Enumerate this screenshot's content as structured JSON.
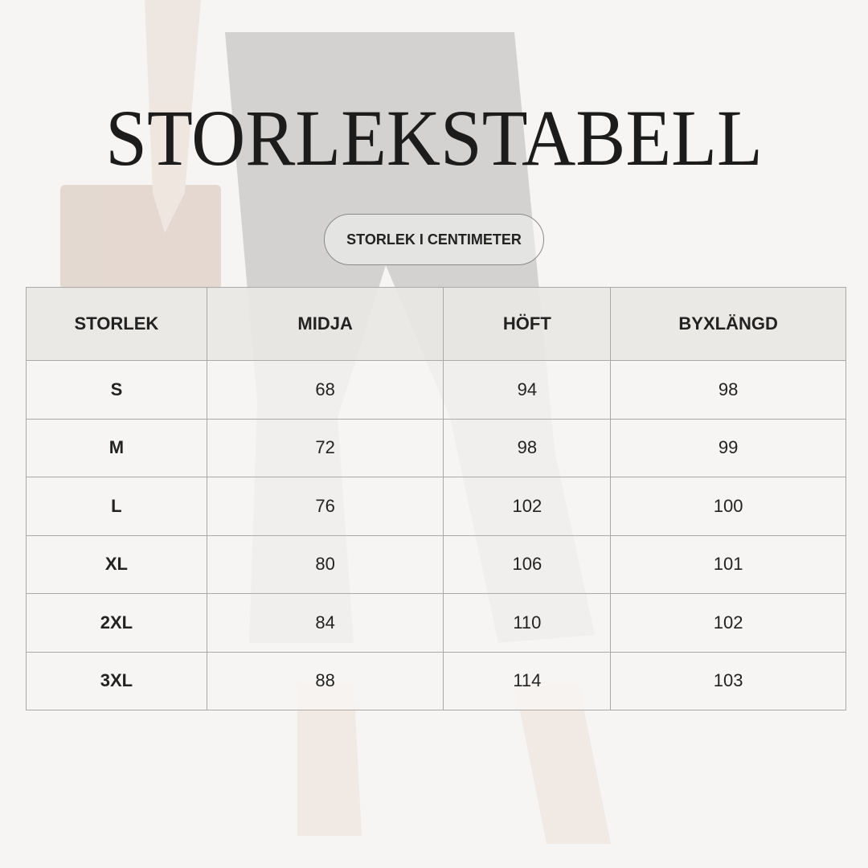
{
  "title": "STORLEKSTABELL",
  "subtitle": "STORLEK I CENTIMETER",
  "table": {
    "headers": [
      "STORLEK",
      "MIDJA",
      "HÖFT",
      "BYXLÄNGD"
    ],
    "rows": [
      [
        "S",
        "68",
        "94",
        "98"
      ],
      [
        "M",
        "72",
        "98",
        "99"
      ],
      [
        "L",
        "76",
        "102",
        "100"
      ],
      [
        "XL",
        "80",
        "106",
        "101"
      ],
      [
        "2XL",
        "84",
        "110",
        "102"
      ],
      [
        "3XL",
        "88",
        "114",
        "103"
      ]
    ]
  },
  "colors": {
    "background": "#f6f5f3",
    "text": "#1c1c1c",
    "header_bg": "#e8e7e3",
    "border": "#a9a9a9"
  }
}
